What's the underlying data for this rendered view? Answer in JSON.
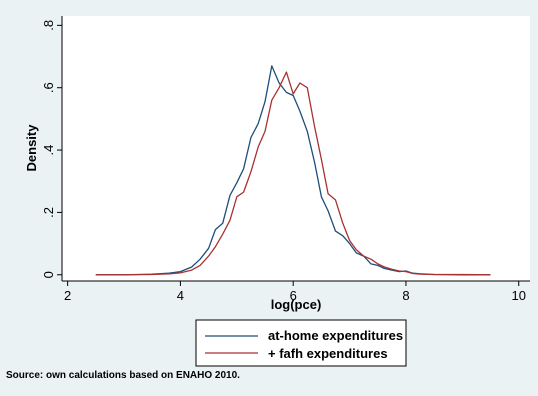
{
  "chart_data": {
    "type": "line",
    "xlabel": "log(pce)",
    "ylabel": "Density",
    "xlim": [
      1.9,
      10.2
    ],
    "ylim": [
      -0.02,
      0.83
    ],
    "xticks": [
      2,
      4,
      6,
      8,
      10
    ],
    "yticks": [
      0,
      0.2,
      0.4,
      0.6,
      0.8
    ],
    "xtick_labels": [
      "2",
      "4",
      "6",
      "8",
      "10"
    ],
    "ytick_labels": [
      "0",
      ".2",
      ".4",
      ".6",
      ".8"
    ],
    "grid": false,
    "legend_position": "bottom",
    "source_note": "Source: own calculations based on ENAHO 2010.",
    "series": [
      {
        "name": "at-home expenditures",
        "color": "#1f4e79",
        "x": [
          2.5,
          3.0,
          3.5,
          3.8,
          4.0,
          4.2,
          4.35,
          4.5,
          4.62,
          4.75,
          4.88,
          5.0,
          5.12,
          5.25,
          5.38,
          5.5,
          5.62,
          5.75,
          5.88,
          6.0,
          6.12,
          6.25,
          6.38,
          6.5,
          6.62,
          6.75,
          6.88,
          7.0,
          7.12,
          7.25,
          7.38,
          7.5,
          7.62,
          7.75,
          7.88,
          8.0,
          8.12,
          8.25,
          8.5,
          9.0,
          9.5
        ],
        "y": [
          0.0,
          0.0,
          0.002,
          0.005,
          0.01,
          0.025,
          0.05,
          0.085,
          0.145,
          0.165,
          0.255,
          0.295,
          0.34,
          0.44,
          0.485,
          0.555,
          0.67,
          0.615,
          0.585,
          0.575,
          0.525,
          0.46,
          0.36,
          0.25,
          0.205,
          0.14,
          0.125,
          0.1,
          0.07,
          0.06,
          0.035,
          0.03,
          0.02,
          0.015,
          0.01,
          0.012,
          0.005,
          0.003,
          0.001,
          0.0,
          0.0
        ]
      },
      {
        "name": "+ fafh expenditures",
        "color": "#a83232",
        "x": [
          2.5,
          3.0,
          3.5,
          3.8,
          4.0,
          4.2,
          4.35,
          4.5,
          4.62,
          4.75,
          4.88,
          5.0,
          5.12,
          5.25,
          5.38,
          5.5,
          5.62,
          5.75,
          5.88,
          6.0,
          6.12,
          6.25,
          6.38,
          6.5,
          6.62,
          6.75,
          6.88,
          7.0,
          7.12,
          7.25,
          7.38,
          7.5,
          7.62,
          7.75,
          7.88,
          8.0,
          8.12,
          8.25,
          8.5,
          9.0,
          9.5
        ],
        "y": [
          0.0,
          0.0,
          0.001,
          0.003,
          0.006,
          0.015,
          0.03,
          0.06,
          0.09,
          0.13,
          0.175,
          0.25,
          0.265,
          0.33,
          0.41,
          0.46,
          0.56,
          0.6,
          0.65,
          0.58,
          0.615,
          0.6,
          0.475,
          0.37,
          0.26,
          0.24,
          0.165,
          0.11,
          0.08,
          0.06,
          0.05,
          0.035,
          0.025,
          0.018,
          0.012,
          0.01,
          0.004,
          0.002,
          0.001,
          0.001,
          0.0
        ]
      }
    ]
  }
}
